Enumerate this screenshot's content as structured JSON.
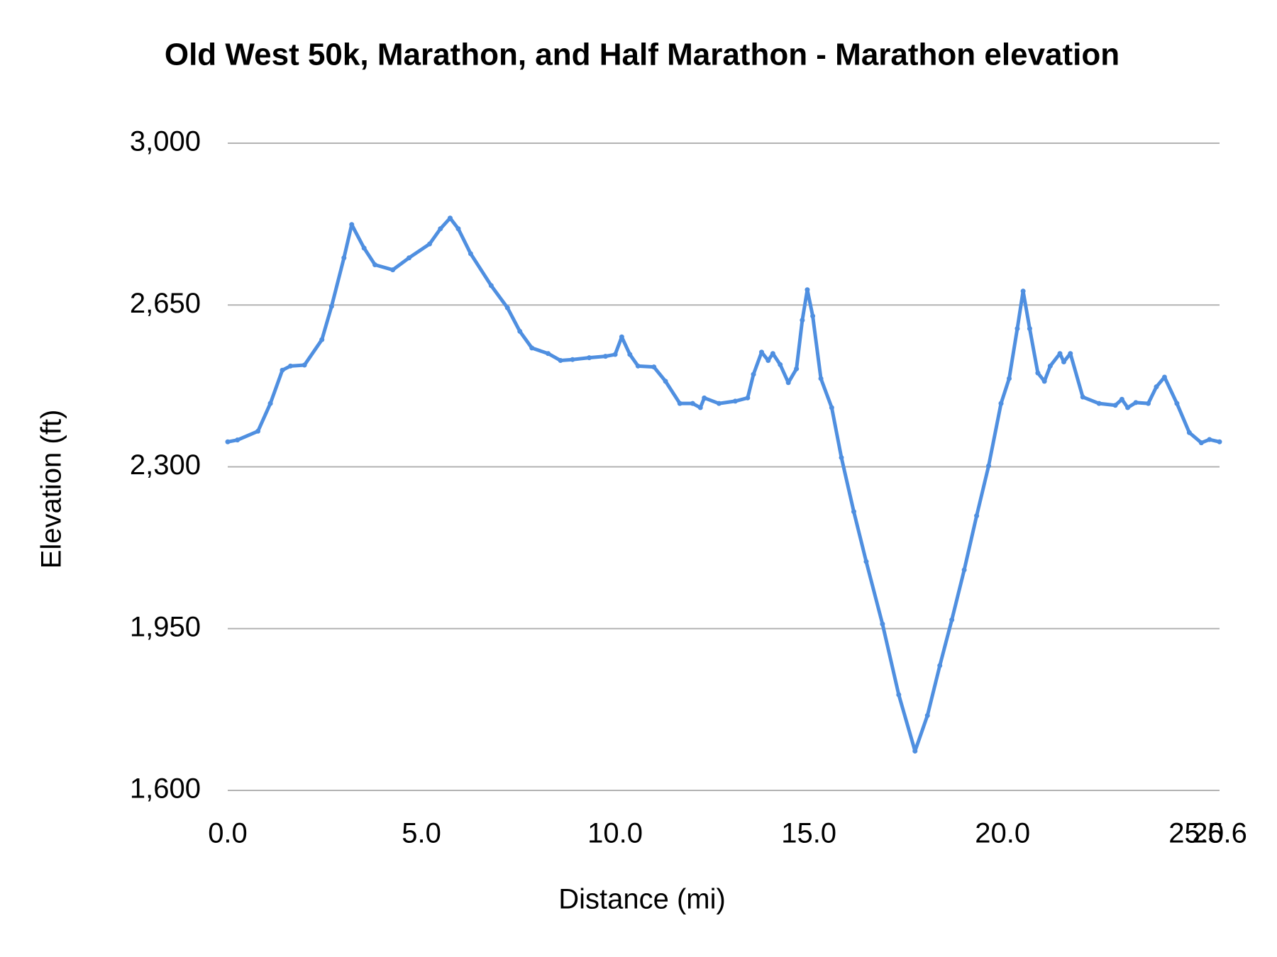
{
  "chart_data": {
    "type": "line",
    "title": "Old West 50k, Marathon, and Half Marathon - Marathon elevation",
    "x_label": "Distance (mi)",
    "y_label": "Elevation (ft)",
    "xlim": [
      0,
      25.6
    ],
    "ylim": [
      1600,
      3000
    ],
    "xticks": [
      {
        "value": 0,
        "label": "0.0"
      },
      {
        "value": 5,
        "label": "5.0"
      },
      {
        "value": 10,
        "label": "10.0"
      },
      {
        "value": 15,
        "label": "15.0"
      },
      {
        "value": 20,
        "label": "20.0"
      },
      {
        "value": 25,
        "label": "25.0"
      },
      25.6
    ],
    "yticks": [
      {
        "value": 1600,
        "label": "1,600"
      },
      {
        "value": 1950,
        "label": "1,950"
      },
      {
        "value": 2300,
        "label": "2,300"
      },
      {
        "value": 2650,
        "label": "2,650"
      },
      {
        "value": 3000,
        "label": "3,000"
      }
    ],
    "grid": true,
    "x": [
      0,
      0.25,
      0.78,
      1.1,
      1.41,
      1.62,
      1.98,
      2.43,
      2.68,
      3.0,
      3.2,
      3.52,
      3.8,
      4.26,
      4.68,
      5.21,
      5.49,
      5.74,
      5.95,
      6.27,
      6.8,
      7.22,
      7.54,
      7.85,
      8.27,
      8.59,
      8.9,
      9.33,
      9.75,
      10.0,
      10.17,
      10.38,
      10.59,
      11.0,
      11.3,
      11.67,
      12.0,
      12.2,
      12.3,
      12.68,
      13.1,
      13.42,
      13.57,
      13.78,
      13.95,
      14.07,
      14.26,
      14.47,
      14.68,
      14.83,
      14.96,
      15.1,
      15.31,
      15.59,
      15.84,
      16.16,
      16.48,
      16.9,
      17.32,
      17.74,
      18.06,
      18.38,
      18.69,
      19.01,
      19.33,
      19.64,
      19.96,
      20.17,
      20.38,
      20.53,
      20.7,
      20.91,
      21.08,
      21.23,
      21.48,
      21.58,
      21.75,
      22.07,
      22.49,
      22.91,
      23.08,
      23.23,
      23.44,
      23.76,
      23.97,
      24.18,
      24.5,
      24.82,
      25.13,
      25.34,
      25.6
    ],
    "series": [
      {
        "color": "#4f8fe0",
        "values": [
          2354,
          2358,
          2377,
          2437,
          2509,
          2518,
          2520,
          2575,
          2647,
          2752,
          2824,
          2773,
          2737,
          2726,
          2752,
          2782,
          2815,
          2838,
          2815,
          2761,
          2692,
          2644,
          2593,
          2557,
          2545,
          2530,
          2532,
          2536,
          2539,
          2543,
          2581,
          2543,
          2518,
          2516,
          2485,
          2437,
          2437,
          2428,
          2449,
          2437,
          2442,
          2449,
          2500,
          2548,
          2530,
          2545,
          2521,
          2482,
          2512,
          2617,
          2683,
          2626,
          2491,
          2428,
          2320,
          2203,
          2095,
          1960,
          1807,
          1685,
          1762,
          1870,
          1969,
          2077,
          2194,
          2302,
          2437,
          2491,
          2599,
          2680,
          2599,
          2503,
          2485,
          2518,
          2545,
          2527,
          2545,
          2451,
          2437,
          2433,
          2446,
          2428,
          2439,
          2437,
          2473,
          2494,
          2437,
          2374,
          2352,
          2359,
          2354
        ]
      }
    ]
  }
}
